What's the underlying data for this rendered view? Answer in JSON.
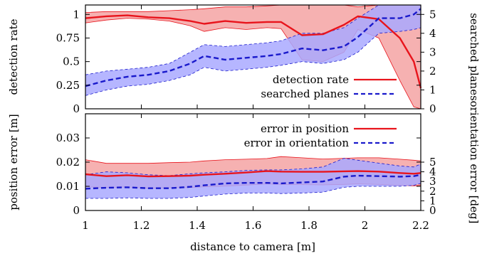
{
  "chart_data": [
    {
      "type": "line",
      "panel": "top",
      "ylabel_left": "detection rate",
      "ylabel_right": "searched planes",
      "x": [
        1.0,
        1.075,
        1.15,
        1.225,
        1.3,
        1.375,
        1.425,
        1.5,
        1.575,
        1.65,
        1.7,
        1.775,
        1.85,
        1.925,
        1.975,
        2.05,
        2.125,
        2.175,
        2.2
      ],
      "xlim": [
        1,
        2.2
      ],
      "ylim_left": [
        0,
        1.1
      ],
      "ylim_right": [
        0,
        5.5
      ],
      "left_ticks": [
        "0",
        "0.25",
        "0.5",
        "0.75",
        "1"
      ],
      "left_tick_values": [
        0,
        0.25,
        0.5,
        0.75,
        1
      ],
      "right_ticks": [
        "0",
        "1",
        "2",
        "3",
        "4",
        "5"
      ],
      "right_tick_values": [
        0,
        1,
        2,
        3,
        4,
        5
      ],
      "series": [
        {
          "name": "detection rate",
          "axis": "left",
          "style": "solid",
          "color": "#e8141c",
          "band_color": "#f4a3a3",
          "values": [
            0.96,
            0.98,
            0.99,
            0.97,
            0.96,
            0.93,
            0.9,
            0.93,
            0.91,
            0.92,
            0.92,
            0.78,
            0.79,
            0.89,
            0.98,
            0.95,
            0.75,
            0.5,
            0.22
          ],
          "band_upper": [
            1.02,
            1.03,
            1.03,
            1.03,
            1.04,
            1.05,
            1.06,
            1.08,
            1.08,
            1.09,
            1.1,
            1.1,
            1.1,
            1.1,
            1.08,
            1.1,
            1.1,
            1.1,
            1.1
          ],
          "band_lower": [
            0.91,
            0.94,
            0.96,
            0.95,
            0.93,
            0.88,
            0.82,
            0.86,
            0.84,
            0.86,
            0.85,
            0.52,
            0.5,
            0.6,
            0.84,
            0.75,
            0.3,
            0.02,
            0.0
          ]
        },
        {
          "name": "searched planes",
          "axis": "right",
          "style": "dashed",
          "color": "#1a1acc",
          "band_color": "#a9a9ff",
          "values": [
            1.2,
            1.5,
            1.7,
            1.8,
            2.0,
            2.4,
            2.8,
            2.6,
            2.7,
            2.8,
            2.9,
            3.2,
            3.1,
            3.3,
            3.8,
            4.8,
            4.8,
            5.0,
            5.3
          ],
          "band_upper": [
            1.8,
            2.0,
            2.1,
            2.2,
            2.4,
            3.0,
            3.4,
            3.3,
            3.4,
            3.5,
            3.6,
            4.0,
            4.0,
            4.3,
            4.8,
            5.5,
            5.5,
            5.5,
            5.5
          ],
          "band_lower": [
            0.7,
            1.0,
            1.2,
            1.3,
            1.5,
            1.8,
            2.2,
            2.0,
            2.1,
            2.2,
            2.3,
            2.5,
            2.4,
            2.6,
            3.0,
            4.0,
            4.1,
            4.2,
            4.3
          ]
        }
      ],
      "legend": "bottom-right"
    },
    {
      "type": "line",
      "panel": "bottom",
      "xlabel": "distance to camera [m]",
      "ylabel_left": "position error [m]",
      "ylabel_right": "orientation error [deg]",
      "x": [
        1.0,
        1.075,
        1.15,
        1.225,
        1.3,
        1.375,
        1.425,
        1.5,
        1.575,
        1.65,
        1.7,
        1.775,
        1.85,
        1.925,
        1.975,
        2.05,
        2.125,
        2.175,
        2.2
      ],
      "xlim": [
        1,
        2.2
      ],
      "ylim_left": [
        0,
        0.04
      ],
      "ylim_right": [
        0,
        10
      ],
      "x_ticks": [
        "1",
        "1.2",
        "1.4",
        "1.6",
        "1.8",
        "2",
        "2.2"
      ],
      "x_tick_values": [
        1,
        1.2,
        1.4,
        1.6,
        1.8,
        2,
        2.2
      ],
      "left_ticks": [
        "0",
        "0.01",
        "0.02",
        "0.03"
      ],
      "left_tick_values": [
        0,
        0.01,
        0.02,
        0.03
      ],
      "right_ticks": [
        "0",
        "1",
        "2",
        "3",
        "4",
        "5"
      ],
      "right_tick_values": [
        0,
        1,
        2,
        3,
        4,
        5
      ],
      "series": [
        {
          "name": "error in position",
          "axis": "left",
          "style": "solid",
          "color": "#e8141c",
          "band_color": "#f4a3a3",
          "values": [
            0.015,
            0.0142,
            0.0146,
            0.0141,
            0.0142,
            0.0144,
            0.0148,
            0.0152,
            0.0157,
            0.0163,
            0.0161,
            0.016,
            0.016,
            0.0162,
            0.0163,
            0.0161,
            0.0155,
            0.0152,
            0.0155
          ],
          "band_upper": [
            0.021,
            0.0195,
            0.0195,
            0.0195,
            0.0198,
            0.02,
            0.0205,
            0.021,
            0.0212,
            0.0215,
            0.0223,
            0.0218,
            0.0213,
            0.0216,
            0.0218,
            0.0218,
            0.0212,
            0.0208,
            0.0205
          ],
          "band_lower": [
            0.0098,
            0.0095,
            0.0097,
            0.0092,
            0.0094,
            0.0095,
            0.0098,
            0.0101,
            0.0105,
            0.011,
            0.0108,
            0.0107,
            0.0106,
            0.0108,
            0.011,
            0.0108,
            0.0104,
            0.0102,
            0.0104
          ]
        },
        {
          "name": "error in orientation",
          "axis": "right",
          "style": "dashed",
          "color": "#1a1acc",
          "band_color": "#a9a9ff",
          "values": [
            2.25,
            2.35,
            2.4,
            2.3,
            2.3,
            2.45,
            2.6,
            2.8,
            2.85,
            2.85,
            2.8,
            2.9,
            3.0,
            3.5,
            3.6,
            3.55,
            3.5,
            3.55,
            3.7
          ],
          "band_upper": [
            3.7,
            4.0,
            3.9,
            3.7,
            3.6,
            3.8,
            3.9,
            4.0,
            4.15,
            4.2,
            4.2,
            4.3,
            4.5,
            5.4,
            5.2,
            4.9,
            4.6,
            4.5,
            4.8
          ],
          "band_lower": [
            1.25,
            1.25,
            1.3,
            1.25,
            1.25,
            1.35,
            1.5,
            1.7,
            1.8,
            1.8,
            1.75,
            1.8,
            1.9,
            2.4,
            2.5,
            2.5,
            2.5,
            2.6,
            2.8
          ]
        }
      ],
      "legend": "top-right"
    }
  ]
}
